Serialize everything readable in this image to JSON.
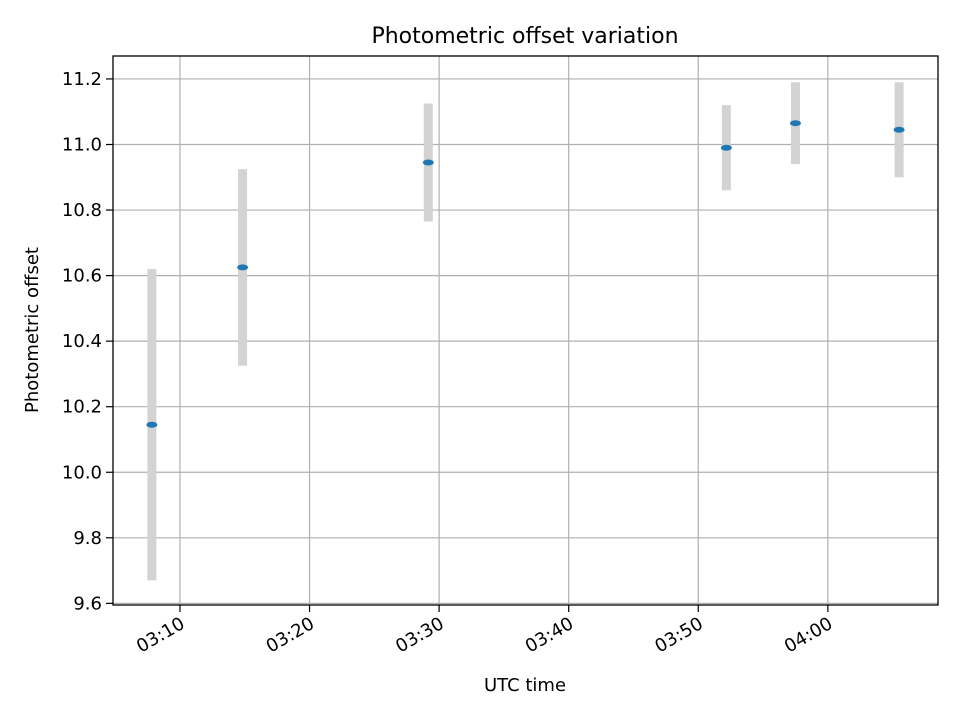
{
  "chart_data": {
    "type": "scatter",
    "title": "Photometric offset variation",
    "xlabel": "UTC time",
    "ylabel": "Photometric offset",
    "x_tick_labels": [
      "03:10",
      "03:20",
      "03:30",
      "03:40",
      "03:50",
      "04:00"
    ],
    "y_tick_labels": [
      "9.6",
      "9.8",
      "10.0",
      "10.2",
      "10.4",
      "10.6",
      "10.8",
      "11.0",
      "11.2"
    ],
    "xlim": [
      "03:04:50",
      "04:08:30"
    ],
    "ylim": [
      9.595,
      11.27
    ],
    "grid": true,
    "points": [
      {
        "x": "03:07:50",
        "y": 10.145,
        "err": 0.475
      },
      {
        "x": "03:14:50",
        "y": 10.625,
        "err": 0.3
      },
      {
        "x": "03:29:10",
        "y": 10.945,
        "err": 0.18
      },
      {
        "x": "03:52:10",
        "y": 10.99,
        "err": 0.13
      },
      {
        "x": "03:57:30",
        "y": 11.065,
        "err": 0.125
      },
      {
        "x": "04:05:30",
        "y": 11.045,
        "err": 0.145
      }
    ],
    "marker_color": "#1f77b4",
    "errorbar_color": "#d3d3d3"
  }
}
